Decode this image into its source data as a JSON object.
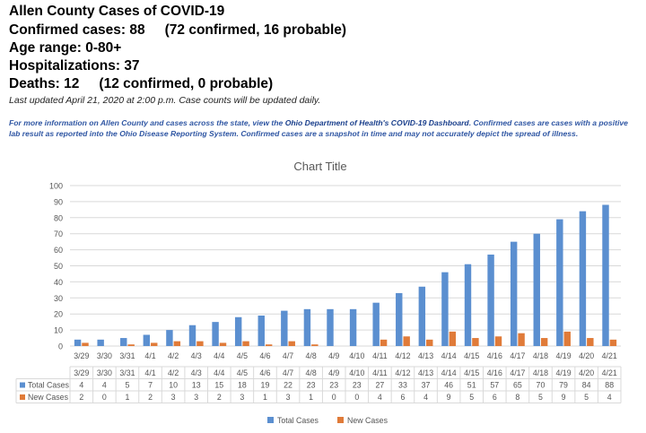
{
  "header": {
    "title": "Allen County Cases of COVID-19",
    "confirmed_label": "Confirmed cases: 88",
    "confirmed_detail": "(72 confirmed, 16 probable)",
    "age_range": "Age range: 0-80+",
    "hospitalizations": "Hospitalizations: 37",
    "deaths_label": "Deaths: 12",
    "deaths_detail": "(12 confirmed, 0 probable)",
    "updated": "Last updated April 21, 2020 at 2:00 p.m. Case counts will be updated daily."
  },
  "info": {
    "text_before": "For more information on Allen County and cases across the state, view the ",
    "link": "Ohio Department of Health's COVID-19 Dashboard",
    "text_after": ".  Confirmed cases are cases with a positive lab result as reported into the Ohio Disease Reporting System. Confirmed cases are a snapshot in time and may not accurately depict the spread of illness."
  },
  "colors": {
    "total": "#5b8fd0",
    "new": "#e07b39",
    "grid": "#d9d9d9",
    "axis_text": "#555555"
  },
  "chart_data": {
    "type": "bar",
    "title": "Chart Title",
    "xlabel": "",
    "ylabel": "",
    "ylim": [
      0,
      100
    ],
    "yticks": [
      0,
      10,
      20,
      30,
      40,
      50,
      60,
      70,
      80,
      90,
      100
    ],
    "grid": true,
    "legend": "bottom",
    "data_table": true,
    "categories": [
      "3/29",
      "3/30",
      "3/31",
      "4/1",
      "4/2",
      "4/3",
      "4/4",
      "4/5",
      "4/6",
      "4/7",
      "4/8",
      "4/9",
      "4/10",
      "4/11",
      "4/12",
      "4/13",
      "4/14",
      "4/15",
      "4/16",
      "4/17",
      "4/18",
      "4/19",
      "4/20",
      "4/21"
    ],
    "series": [
      {
        "name": "Total Cases",
        "color": "#5b8fd0",
        "values": [
          4,
          4,
          5,
          7,
          10,
          13,
          15,
          18,
          19,
          22,
          23,
          23,
          23,
          27,
          33,
          37,
          46,
          51,
          57,
          65,
          70,
          79,
          84,
          88
        ]
      },
      {
        "name": "New Cases",
        "color": "#e07b39",
        "values": [
          2,
          0,
          1,
          2,
          3,
          3,
          2,
          3,
          1,
          3,
          1,
          0,
          0,
          4,
          6,
          4,
          9,
          5,
          6,
          8,
          5,
          9,
          5,
          4
        ]
      }
    ]
  }
}
